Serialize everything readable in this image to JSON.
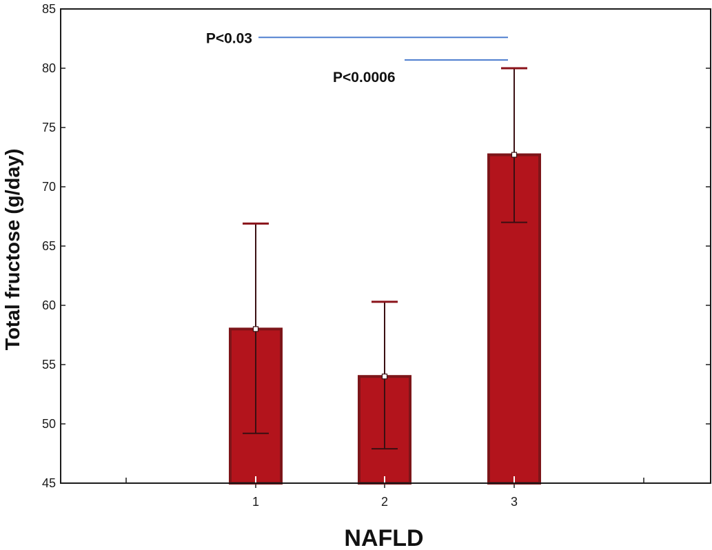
{
  "chart_data": {
    "type": "bar",
    "title": "",
    "xlabel": "NAFLD",
    "ylabel": "Total fructose (g/day)",
    "ylim": [
      45,
      85
    ],
    "yticks": [
      45,
      50,
      55,
      60,
      65,
      70,
      75,
      80,
      85
    ],
    "categories": [
      "1",
      "2",
      "3"
    ],
    "values": [
      58.0,
      54.0,
      72.7
    ],
    "error_lower": [
      49.2,
      47.9,
      67.0
    ],
    "error_upper": [
      66.9,
      60.3,
      80.0
    ],
    "grid": false,
    "legend": "none",
    "colors": {
      "bar_fill": "#b3141c",
      "bar_stroke": "#7d1519",
      "whisker": "#8a1219",
      "error_line": "#3a0f12",
      "annotation_line": "#4f7fcf"
    },
    "annotations": [
      {
        "text": "P<0.03",
        "y_value": 82.6,
        "x_from": "1",
        "x_to": "3"
      },
      {
        "text": "P<0.0006",
        "y_value": 80.7,
        "x_from": "2",
        "x_to": "3"
      }
    ]
  }
}
